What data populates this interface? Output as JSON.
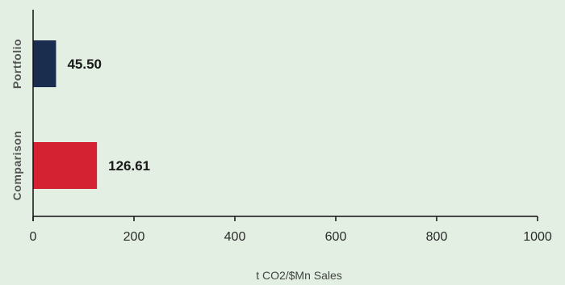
{
  "chart_data": {
    "type": "bar",
    "orientation": "horizontal",
    "categories": [
      "Portfolio",
      "Comparison"
    ],
    "values": [
      45.5,
      126.61
    ],
    "value_labels": [
      "45.50",
      "126.61"
    ],
    "colors": [
      "#1b2d4f",
      "#d42232"
    ],
    "title": "",
    "xlabel": "t CO2/$Mn Sales",
    "ylabel": "",
    "xlim": [
      0,
      1000
    ],
    "xticks": [
      0,
      200,
      400,
      600,
      800,
      1000
    ],
    "xtick_labels": [
      "0",
      "200",
      "400",
      "600",
      "800",
      "1000"
    ],
    "grid": false,
    "legend": false,
    "background": "#e2efe2"
  }
}
